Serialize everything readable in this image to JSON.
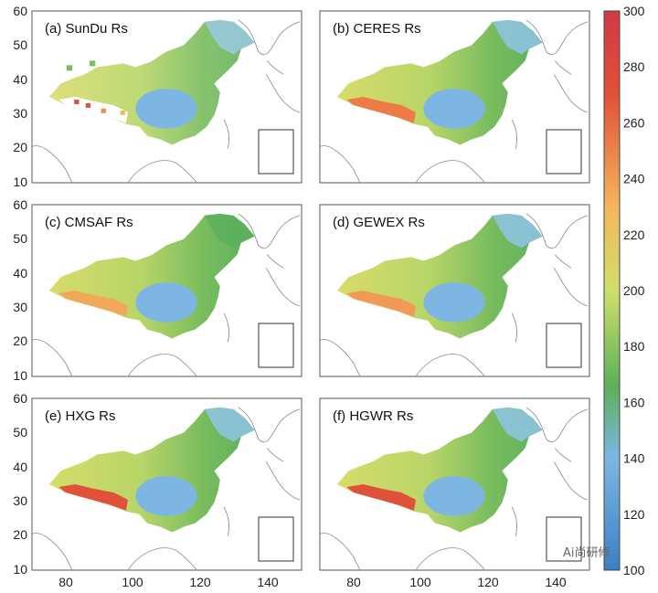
{
  "panels": [
    {
      "title": "(a) SunDu Rs"
    },
    {
      "title": "(b) CERES Rs"
    },
    {
      "title": "(c) CMSAF Rs"
    },
    {
      "title": "(d) GEWEX Rs"
    },
    {
      "title": "(e) HXG Rs"
    },
    {
      "title": "(f) HGWR Rs"
    }
  ],
  "axes": {
    "y_ticks": [
      "60",
      "50",
      "40",
      "30",
      "20",
      "10"
    ],
    "x_ticks": [
      "80",
      "100",
      "120",
      "140"
    ],
    "lon_range": [
      70,
      150
    ],
    "lat_range": [
      10,
      60
    ]
  },
  "colorbar": {
    "ticks": [
      "300",
      "280",
      "260",
      "240",
      "220",
      "200",
      "180",
      "160",
      "140",
      "120",
      "100"
    ],
    "range": [
      100,
      300
    ],
    "colors": [
      "#3b7fc4",
      "#7db6e3",
      "#5cb05a",
      "#cfe06a",
      "#f4b65a",
      "#e0513a",
      "#cf3a44"
    ]
  },
  "watermark": "Ai尚研修"
}
